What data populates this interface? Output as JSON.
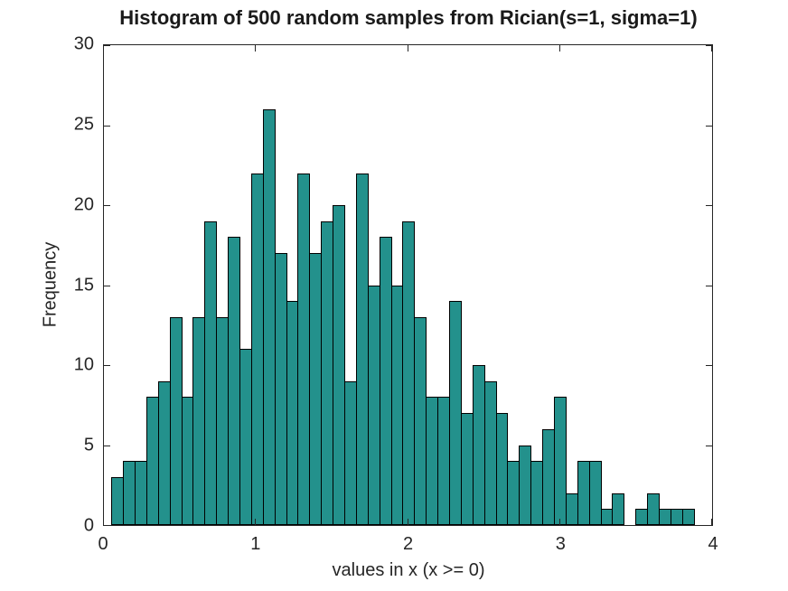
{
  "figure": {
    "title": "Histogram of 500 random samples from Rician(s=1, sigma=1)"
  },
  "chart_data": {
    "type": "bar",
    "subtype": "histogram",
    "title": "Histogram of 500 random samples from Rician(s=1, sigma=1)",
    "xlabel": "values in x (x >= 0)",
    "ylabel": "Frequency",
    "xlim": [
      0,
      4
    ],
    "ylim": [
      0,
      30
    ],
    "x_ticks": [
      0,
      1,
      2,
      3,
      4
    ],
    "y_ticks": [
      0,
      5,
      10,
      15,
      20,
      25,
      30
    ],
    "bin_start": 0.049,
    "bin_width": 0.0766,
    "counts": [
      3,
      4,
      4,
      8,
      9,
      13,
      8,
      13,
      19,
      13,
      18,
      11,
      22,
      26,
      17,
      14,
      22,
      17,
      19,
      20,
      9,
      22,
      15,
      18,
      15,
      19,
      13,
      8,
      8,
      14,
      7,
      10,
      9,
      7,
      4,
      5,
      4,
      6,
      8,
      2,
      4,
      4,
      1,
      2,
      0,
      1,
      2,
      1,
      1,
      1
    ],
    "total_samples": 500,
    "bar_color": "#23918C",
    "bar_edge_color": "#000000",
    "axis_color": "#262626",
    "grid": false,
    "legend": null,
    "box": true,
    "tick_direction": "in"
  }
}
